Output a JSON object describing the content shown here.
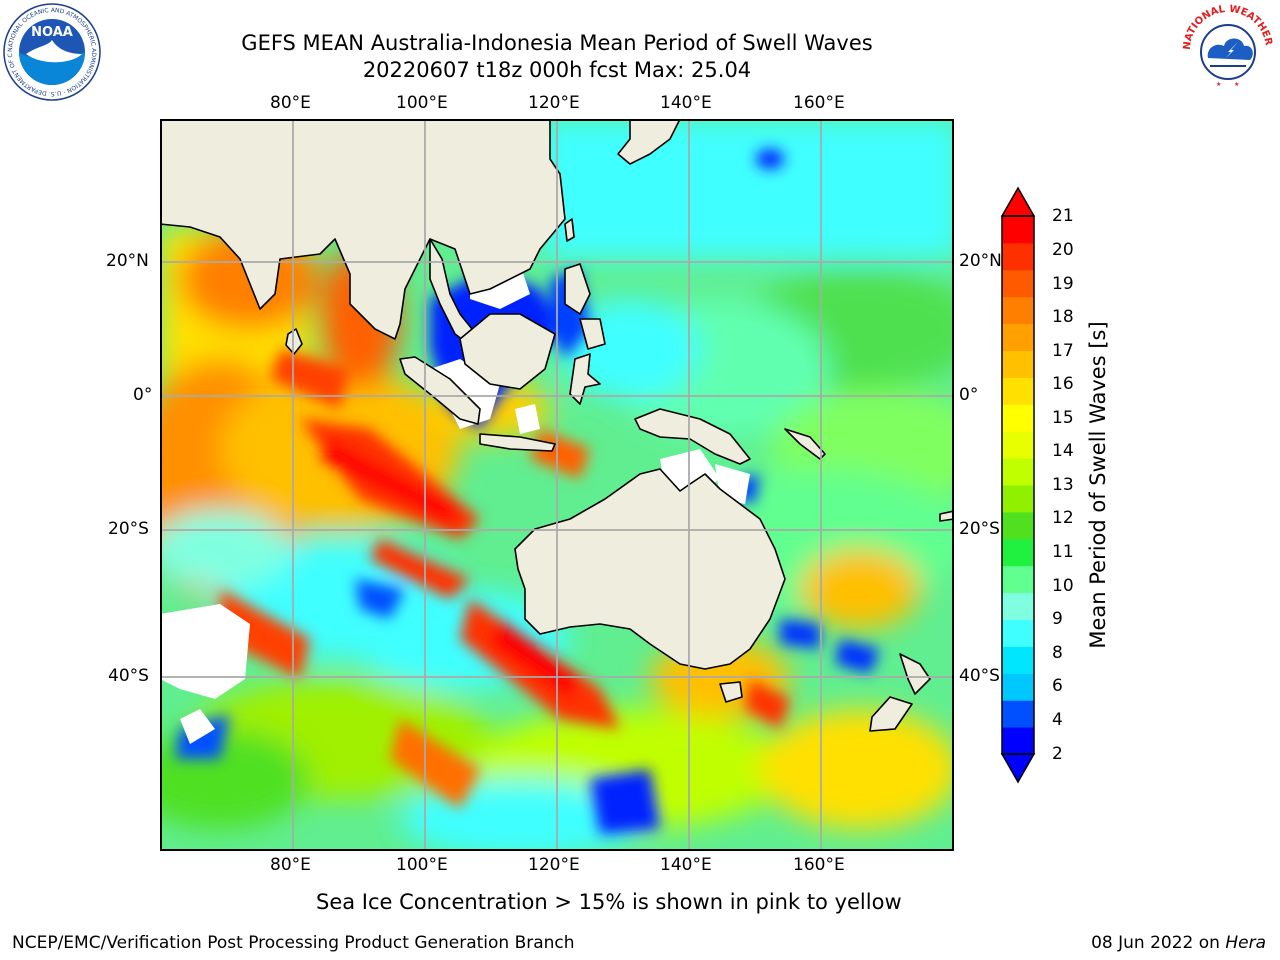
{
  "title": {
    "line1": "GEFS MEAN Australia-Indonesia Mean Period of Swell Waves",
    "line2": "20220607 t18z 000h fcst   Max: 25.04"
  },
  "axes": {
    "lon_top": [
      "80°E",
      "100°E",
      "120°E",
      "140°E",
      "160°E"
    ],
    "lon_bottom": [
      "80°E",
      "100°E",
      "120°E",
      "140°E",
      "160°E"
    ],
    "lat_left": [
      "20°N",
      "0°",
      "20°S",
      "40°S"
    ],
    "lat_right": [
      "20°N",
      "0°",
      "20°S",
      "40°S"
    ]
  },
  "colorbar": {
    "label": "Mean Period of Swell Waves [s]",
    "ticks": [
      "21",
      "20",
      "19",
      "18",
      "17",
      "16",
      "15",
      "14",
      "13",
      "12",
      "11",
      "10",
      "9",
      "8",
      "6",
      "4",
      "2"
    ],
    "colors": [
      "#0000ff",
      "#0050ff",
      "#00c8ff",
      "#00e6ff",
      "#40ffff",
      "#80ffe0",
      "#60ff90",
      "#20f040",
      "#50e020",
      "#90f000",
      "#c0ff00",
      "#e8ff00",
      "#ffff00",
      "#ffe000",
      "#ffc000",
      "#ffa000",
      "#ff8000",
      "#ff5a00",
      "#ff3000",
      "#ff0000"
    ]
  },
  "caption": "Sea Ice Concentration > 15% is shown in pink to yellow",
  "footer": {
    "left": "NCEP/EMC/Verification Post Processing Product Generation Branch",
    "right_date": "08 Jun 2022 on ",
    "right_host": "Hera"
  },
  "logos": {
    "noaa_text": "NOAA",
    "noaa_ring": "NATIONAL OCEANIC AND ATMOSPHERIC ADMINISTRATION · U.S. DEPARTMENT OF COMMERCE",
    "nws_ring": "NATIONAL WEATHER SERVICE"
  }
}
